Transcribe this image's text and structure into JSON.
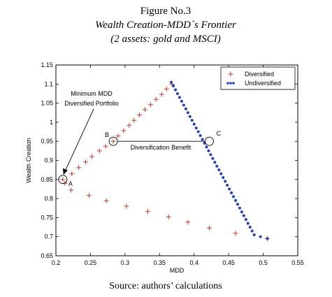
{
  "figure": {
    "heading": "Figure No.3",
    "title": "Wealth Creation-MDD`s Frontier",
    "subtitle": "(2 assets: gold and MSCI)",
    "source": "Source: authors’ calculations"
  },
  "chart_data": {
    "type": "scatter",
    "xlabel": "MDD",
    "ylabel": "Wealth Creation",
    "xlim": [
      0.2,
      0.55
    ],
    "ylim": [
      0.65,
      1.15
    ],
    "xticks": [
      "0.2",
      "0.25",
      "0.3",
      "0.35",
      "0.4",
      "0.45",
      "0.5",
      "0.55"
    ],
    "yticks": [
      "0.65",
      "0.7",
      "0.75",
      "0.8",
      "0.85",
      "0.9",
      "0.95",
      "1",
      "1.05",
      "1.1",
      "1.15"
    ],
    "grid": false,
    "legend_position": "top-right",
    "series": [
      {
        "name": "Diversified",
        "marker": "plus",
        "color": "#c0392b",
        "points": [
          [
            0.21,
            0.85
          ],
          [
            0.213,
            0.84
          ],
          [
            0.223,
            0.865
          ],
          [
            0.233,
            0.881
          ],
          [
            0.243,
            0.896
          ],
          [
            0.252,
            0.91
          ],
          [
            0.263,
            0.925
          ],
          [
            0.272,
            0.937
          ],
          [
            0.283,
            0.95
          ],
          [
            0.29,
            0.964
          ],
          [
            0.298,
            0.978
          ],
          [
            0.306,
            0.992
          ],
          [
            0.313,
            1.005
          ],
          [
            0.321,
            1.019
          ],
          [
            0.329,
            1.033
          ],
          [
            0.337,
            1.046
          ],
          [
            0.345,
            1.06
          ],
          [
            0.353,
            1.073
          ],
          [
            0.36,
            1.087
          ],
          [
            0.368,
            1.1
          ],
          [
            0.222,
            0.822
          ],
          [
            0.248,
            0.808
          ],
          [
            0.273,
            0.794
          ],
          [
            0.302,
            0.78
          ],
          [
            0.333,
            0.766
          ],
          [
            0.363,
            0.752
          ],
          [
            0.391,
            0.738
          ],
          [
            0.422,
            0.723
          ],
          [
            0.46,
            0.709
          ],
          [
            0.506,
            0.695
          ]
        ]
      },
      {
        "name": "Undiversified",
        "marker": "dot",
        "color": "#1f3fbf",
        "points": [
          [
            0.367,
            1.105
          ],
          [
            0.37,
            1.095
          ],
          [
            0.373,
            1.085
          ],
          [
            0.376,
            1.075
          ],
          [
            0.379,
            1.065
          ],
          [
            0.382,
            1.055
          ],
          [
            0.385,
            1.045
          ],
          [
            0.388,
            1.035
          ],
          [
            0.391,
            1.025
          ],
          [
            0.394,
            1.015
          ],
          [
            0.397,
            1.005
          ],
          [
            0.4,
            0.995
          ],
          [
            0.403,
            0.985
          ],
          [
            0.406,
            0.975
          ],
          [
            0.409,
            0.965
          ],
          [
            0.412,
            0.955
          ],
          [
            0.415,
            0.945
          ],
          [
            0.418,
            0.935
          ],
          [
            0.421,
            0.925
          ],
          [
            0.424,
            0.915
          ],
          [
            0.427,
            0.905
          ],
          [
            0.43,
            0.895
          ],
          [
            0.433,
            0.885
          ],
          [
            0.436,
            0.875
          ],
          [
            0.439,
            0.865
          ],
          [
            0.442,
            0.855
          ],
          [
            0.445,
            0.845
          ],
          [
            0.448,
            0.835
          ],
          [
            0.451,
            0.825
          ],
          [
            0.454,
            0.815
          ],
          [
            0.457,
            0.805
          ],
          [
            0.46,
            0.795
          ],
          [
            0.463,
            0.785
          ],
          [
            0.466,
            0.775
          ],
          [
            0.469,
            0.765
          ],
          [
            0.472,
            0.755
          ],
          [
            0.475,
            0.745
          ],
          [
            0.478,
            0.735
          ],
          [
            0.481,
            0.725
          ],
          [
            0.484,
            0.715
          ],
          [
            0.487,
            0.705
          ],
          [
            0.496,
            0.7
          ],
          [
            0.506,
            0.695
          ]
        ]
      }
    ],
    "annotations": {
      "min_mdd_text": [
        "Minimum MDD",
        "Diversified Portfolio"
      ],
      "benefit_text": "Diversification Benefit",
      "markers": [
        {
          "label": "A",
          "x": 0.21,
          "y": 0.85
        },
        {
          "label": "B",
          "x": 0.283,
          "y": 0.95
        },
        {
          "label": "C",
          "x": 0.422,
          "y": 0.95
        }
      ]
    }
  }
}
